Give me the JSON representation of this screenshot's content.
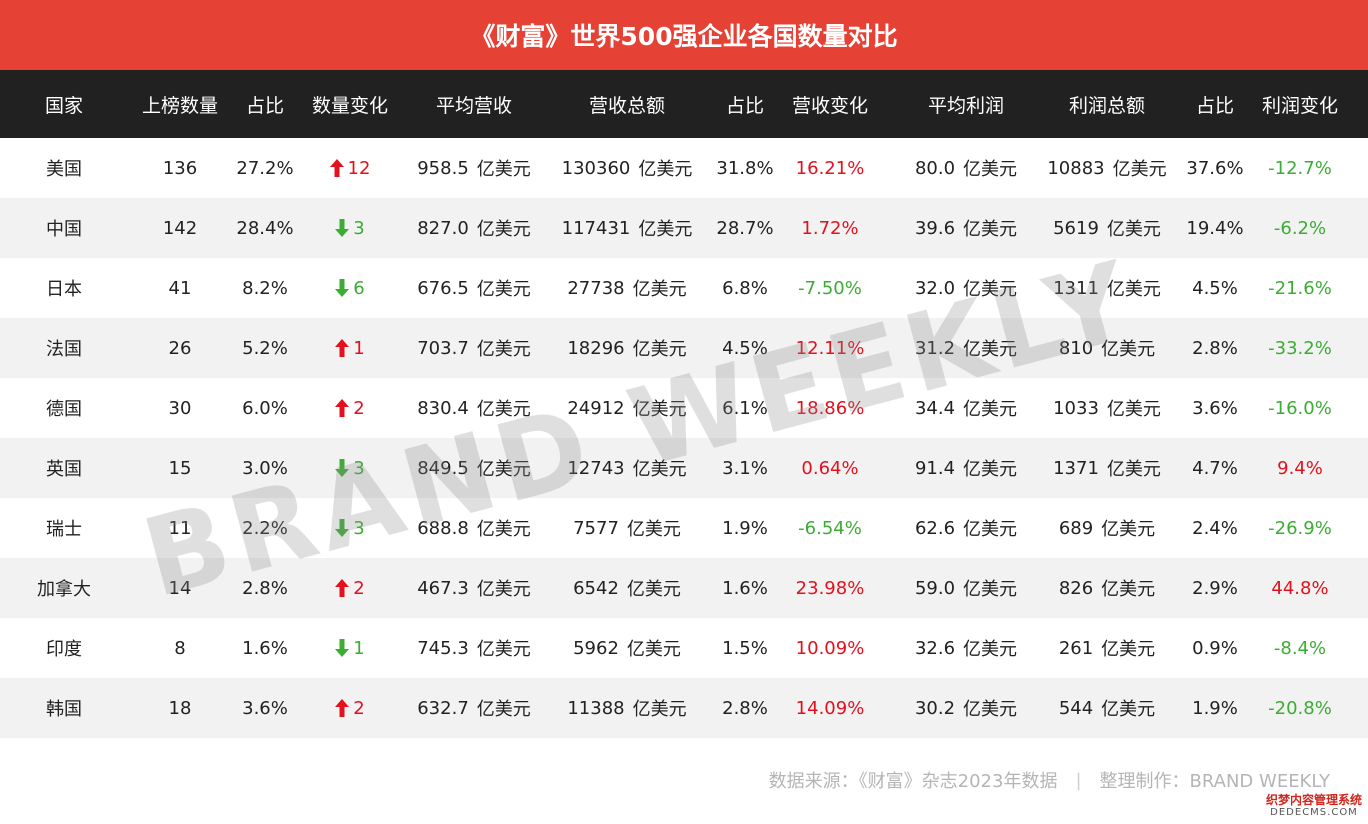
{
  "title": "《财富》世界500强企业各国数量对比",
  "headers": [
    "国家",
    "上榜数量",
    "占比",
    "数量变化",
    "平均营收",
    "营收总额",
    "占比",
    "营收变化",
    "平均利润",
    "利润总额",
    "占比",
    "利润变化"
  ],
  "unit": "亿美元",
  "rows": [
    {
      "country": "美国",
      "count": "136",
      "share": "27.2%",
      "count_dir": "up",
      "count_change": "12",
      "avg_revenue": "958.5",
      "total_revenue": "130360",
      "revenue_share": "31.8%",
      "revenue_dir": "up",
      "revenue_change": "16.21%",
      "avg_profit": "80.0",
      "total_profit": "10883",
      "profit_share": "37.6%",
      "profit_dir": "down",
      "profit_change": "-12.7%"
    },
    {
      "country": "中国",
      "count": "142",
      "share": "28.4%",
      "count_dir": "down",
      "count_change": "3",
      "avg_revenue": "827.0",
      "total_revenue": "117431",
      "revenue_share": "28.7%",
      "revenue_dir": "up",
      "revenue_change": "1.72%",
      "avg_profit": "39.6",
      "total_profit": "5619",
      "profit_share": "19.4%",
      "profit_dir": "down",
      "profit_change": "-6.2%"
    },
    {
      "country": "日本",
      "count": "41",
      "share": "8.2%",
      "count_dir": "down",
      "count_change": "6",
      "avg_revenue": "676.5",
      "total_revenue": "27738",
      "revenue_share": "6.8%",
      "revenue_dir": "down",
      "revenue_change": "-7.50%",
      "avg_profit": "32.0",
      "total_profit": "1311",
      "profit_share": "4.5%",
      "profit_dir": "down",
      "profit_change": "-21.6%"
    },
    {
      "country": "法国",
      "count": "26",
      "share": "5.2%",
      "count_dir": "up",
      "count_change": "1",
      "avg_revenue": "703.7",
      "total_revenue": "18296",
      "revenue_share": "4.5%",
      "revenue_dir": "up",
      "revenue_change": "12.11%",
      "avg_profit": "31.2",
      "total_profit": "810",
      "profit_share": "2.8%",
      "profit_dir": "down",
      "profit_change": "-33.2%"
    },
    {
      "country": "德国",
      "count": "30",
      "share": "6.0%",
      "count_dir": "up",
      "count_change": "2",
      "avg_revenue": "830.4",
      "total_revenue": "24912",
      "revenue_share": "6.1%",
      "revenue_dir": "up",
      "revenue_change": "18.86%",
      "avg_profit": "34.4",
      "total_profit": "1033",
      "profit_share": "3.6%",
      "profit_dir": "down",
      "profit_change": "-16.0%"
    },
    {
      "country": "英国",
      "count": "15",
      "share": "3.0%",
      "count_dir": "down",
      "count_change": "3",
      "avg_revenue": "849.5",
      "total_revenue": "12743",
      "revenue_share": "3.1%",
      "revenue_dir": "up",
      "revenue_change": "0.64%",
      "avg_profit": "91.4",
      "total_profit": "1371",
      "profit_share": "4.7%",
      "profit_dir": "up",
      "profit_change": "9.4%"
    },
    {
      "country": "瑞士",
      "count": "11",
      "share": "2.2%",
      "count_dir": "down",
      "count_change": "3",
      "avg_revenue": "688.8",
      "total_revenue": "7577",
      "revenue_share": "1.9%",
      "revenue_dir": "down",
      "revenue_change": "-6.54%",
      "avg_profit": "62.6",
      "total_profit": "689",
      "profit_share": "2.4%",
      "profit_dir": "down",
      "profit_change": "-26.9%"
    },
    {
      "country": "加拿大",
      "count": "14",
      "share": "2.8%",
      "count_dir": "up",
      "count_change": "2",
      "avg_revenue": "467.3",
      "total_revenue": "6542",
      "revenue_share": "1.6%",
      "revenue_dir": "up",
      "revenue_change": "23.98%",
      "avg_profit": "59.0",
      "total_profit": "826",
      "profit_share": "2.9%",
      "profit_dir": "up",
      "profit_change": "44.8%"
    },
    {
      "country": "印度",
      "count": "8",
      "share": "1.6%",
      "count_dir": "down",
      "count_change": "1",
      "avg_revenue": "745.3",
      "total_revenue": "5962",
      "revenue_share": "1.5%",
      "revenue_dir": "up",
      "revenue_change": "10.09%",
      "avg_profit": "32.6",
      "total_profit": "261",
      "profit_share": "0.9%",
      "profit_dir": "down",
      "profit_change": "-8.4%"
    },
    {
      "country": "韩国",
      "count": "18",
      "share": "3.6%",
      "count_dir": "up",
      "count_change": "2",
      "avg_revenue": "632.7",
      "total_revenue": "11388",
      "revenue_share": "2.8%",
      "revenue_dir": "up",
      "revenue_change": "14.09%",
      "avg_profit": "30.2",
      "total_profit": "544",
      "profit_share": "1.9%",
      "profit_dir": "down",
      "profit_change": "-20.8%"
    }
  ],
  "colors": {
    "title_bg": "#e54235",
    "header_bg": "#212121",
    "up": "#e3101e",
    "down": "#3cac34",
    "stripe": "#f2f2f2"
  },
  "icons": {
    "up": "arrow-up-icon",
    "down": "arrow-down-icon"
  },
  "watermark": "BRAND WEEKLY",
  "footer": {
    "source": "数据来源：《财富》杂志2023年数据",
    "separator": "|",
    "credit": "整理制作：BRAND WEEKLY"
  },
  "corner_mark": {
    "cn": "织梦内容管理系统",
    "en": "DEDECMS.COM"
  }
}
